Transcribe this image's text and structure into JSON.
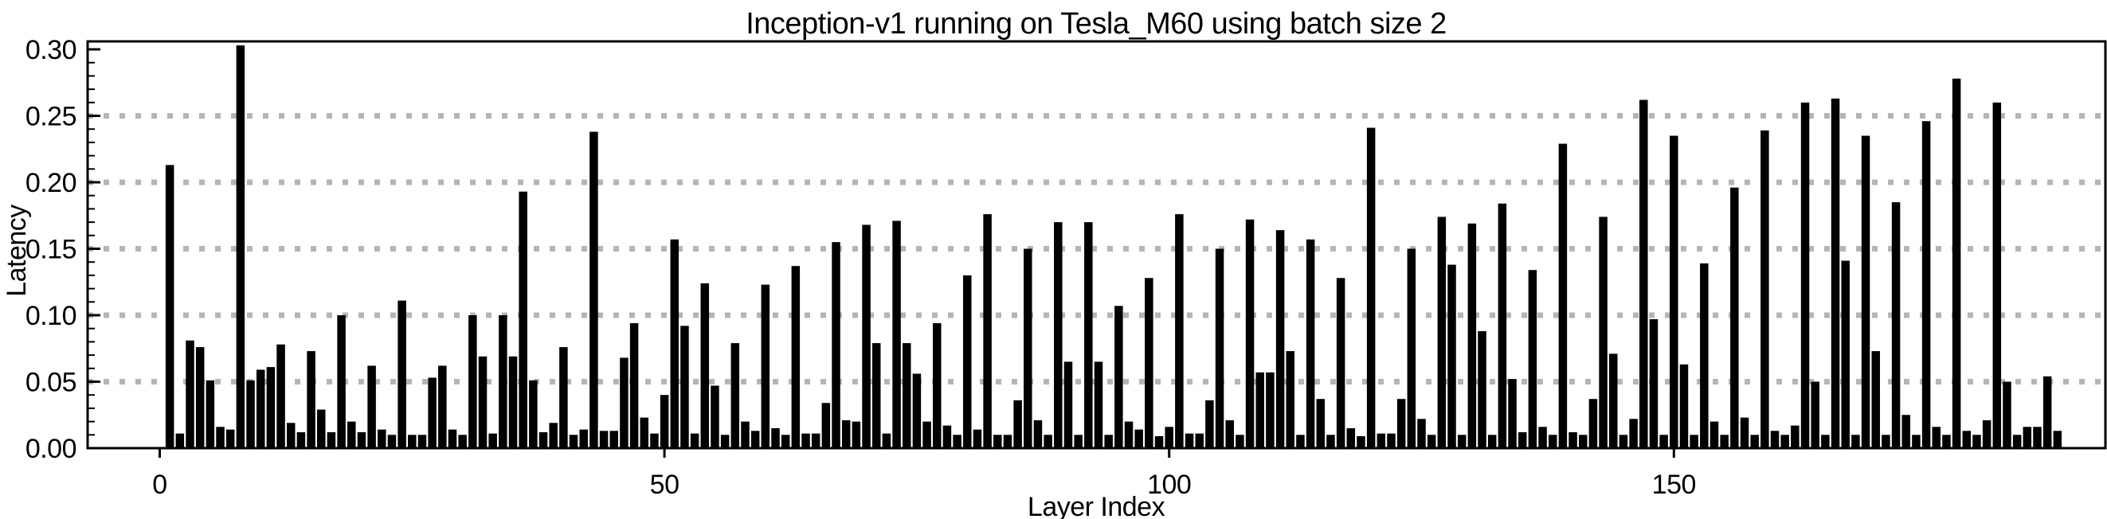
{
  "chart_data": {
    "type": "bar",
    "title": "Inception-v1 running on Tesla_M60 using batch size 2",
    "xlabel": "Layer Index",
    "ylabel": "Latency",
    "x_tick_values": [
      0,
      50,
      100,
      150
    ],
    "y_tick_labels": [
      "0.00",
      "0.05",
      "0.10",
      "0.15",
      "0.20",
      "0.25",
      "0.30"
    ],
    "y_tick_step": 0.05,
    "y_minor_tick_step": 0.01,
    "ylim": [
      0,
      0.306
    ],
    "xlim": [
      -7,
      193
    ],
    "grid": "dotted horizontal at 0.05 intervals",
    "legend": "none",
    "bar_color": "#000000",
    "grid_color": "#b5b5b5",
    "background_color": "#ffffff",
    "first_layer_index": 1,
    "values": [
      0.213,
      0.011,
      0.081,
      0.076,
      0.051,
      0.016,
      0.014,
      0.303,
      0.051,
      0.059,
      0.061,
      0.078,
      0.019,
      0.012,
      0.073,
      0.029,
      0.012,
      0.1,
      0.02,
      0.012,
      0.062,
      0.014,
      0.01,
      0.111,
      0.01,
      0.01,
      0.053,
      0.062,
      0.014,
      0.01,
      0.1,
      0.069,
      0.011,
      0.1,
      0.069,
      0.193,
      0.051,
      0.012,
      0.019,
      0.076,
      0.01,
      0.014,
      0.238,
      0.013,
      0.013,
      0.068,
      0.094,
      0.023,
      0.011,
      0.04,
      0.157,
      0.092,
      0.011,
      0.124,
      0.047,
      0.01,
      0.079,
      0.02,
      0.013,
      0.123,
      0.015,
      0.01,
      0.137,
      0.011,
      0.011,
      0.034,
      0.155,
      0.021,
      0.02,
      0.168,
      0.079,
      0.011,
      0.171,
      0.079,
      0.056,
      0.02,
      0.094,
      0.017,
      0.01,
      0.13,
      0.014,
      0.176,
      0.01,
      0.01,
      0.036,
      0.15,
      0.021,
      0.01,
      0.17,
      0.065,
      0.01,
      0.17,
      0.065,
      0.01,
      0.107,
      0.02,
      0.014,
      0.128,
      0.009,
      0.016,
      0.176,
      0.011,
      0.011,
      0.036,
      0.15,
      0.021,
      0.01,
      0.172,
      0.057,
      0.057,
      0.164,
      0.073,
      0.01,
      0.157,
      0.037,
      0.01,
      0.128,
      0.015,
      0.009,
      0.241,
      0.011,
      0.011,
      0.037,
      0.15,
      0.022,
      0.01,
      0.174,
      0.138,
      0.01,
      0.169,
      0.088,
      0.01,
      0.184,
      0.052,
      0.012,
      0.134,
      0.016,
      0.01,
      0.229,
      0.012,
      0.01,
      0.037,
      0.174,
      0.071,
      0.01,
      0.022,
      0.262,
      0.097,
      0.01,
      0.235,
      0.063,
      0.01,
      0.139,
      0.02,
      0.01,
      0.196,
      0.023,
      0.01,
      0.239,
      0.013,
      0.01,
      0.017,
      0.26,
      0.05,
      0.01,
      0.263,
      0.141,
      0.01,
      0.235,
      0.073,
      0.01,
      0.185,
      0.025,
      0.01,
      0.246,
      0.016,
      0.01,
      0.278,
      0.013,
      0.01,
      0.021,
      0.26,
      0.05,
      0.01,
      0.016,
      0.016,
      0.054,
      0.013
    ]
  }
}
